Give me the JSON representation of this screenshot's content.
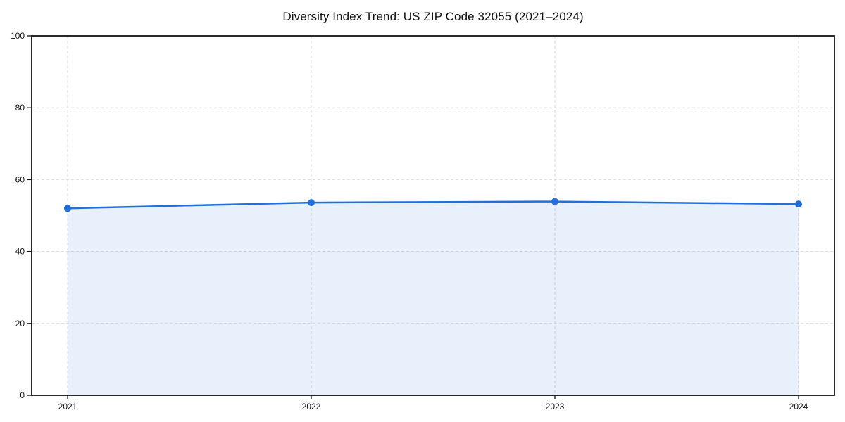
{
  "title": "Diversity Index Trend: US ZIP Code 32055 (2021–2024)",
  "chart_data": {
    "type": "area",
    "title": "Diversity Index Trend: US ZIP Code 32055 (2021–2024)",
    "categories": [
      "2021",
      "2022",
      "2023",
      "2024"
    ],
    "values": [
      52.0,
      53.6,
      53.9,
      53.2
    ],
    "xlabel": "",
    "ylabel": "",
    "ylim": [
      0,
      100
    ],
    "yticks": [
      0,
      20,
      40,
      60,
      80,
      100
    ],
    "grid": true,
    "grid_style": "dashed",
    "legend": false,
    "line_color": "#1f6fe0",
    "marker_color": "#1f6fe0",
    "fill_color": "rgba(31,111,224,0.10)",
    "axis_color": "#111111",
    "background_color": "#ffffff"
  }
}
